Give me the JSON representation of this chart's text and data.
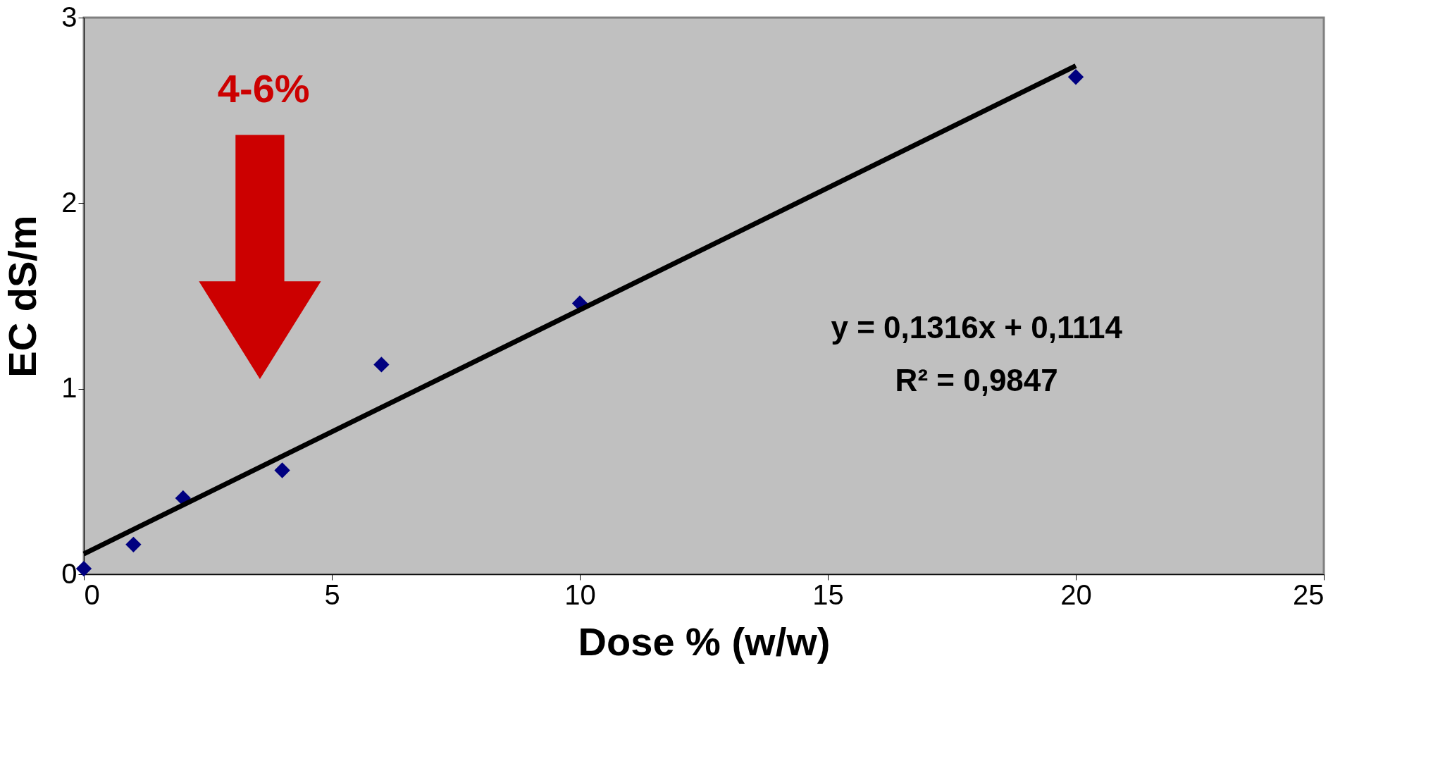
{
  "chart_data": {
    "type": "scatter",
    "xlabel": "Dose % (w/w)",
    "ylabel": "EC dS/m",
    "xlim": [
      0,
      25
    ],
    "xticks": [
      0,
      5,
      10,
      15,
      20,
      25
    ],
    "ylim": [
      0,
      3
    ],
    "yticks": [
      0,
      1,
      2,
      3
    ],
    "grid": false,
    "marker": "diamond",
    "series": [
      {
        "type": "scatter",
        "color": "#000080",
        "x": [
          0,
          1,
          2,
          4,
          6,
          10,
          20
        ],
        "values": [
          0.03,
          0.16,
          0.41,
          0.56,
          1.13,
          1.46,
          2.68
        ]
      },
      {
        "type": "line",
        "color": "#000000",
        "marker": "none",
        "line_style": "solid",
        "x": [
          0,
          20
        ],
        "values": [
          0.11,
          2.74
        ]
      }
    ],
    "annotations": [
      "4-6%",
      "y = 0,1316x + 0,1114",
      "R² = 0,9847"
    ]
  }
}
